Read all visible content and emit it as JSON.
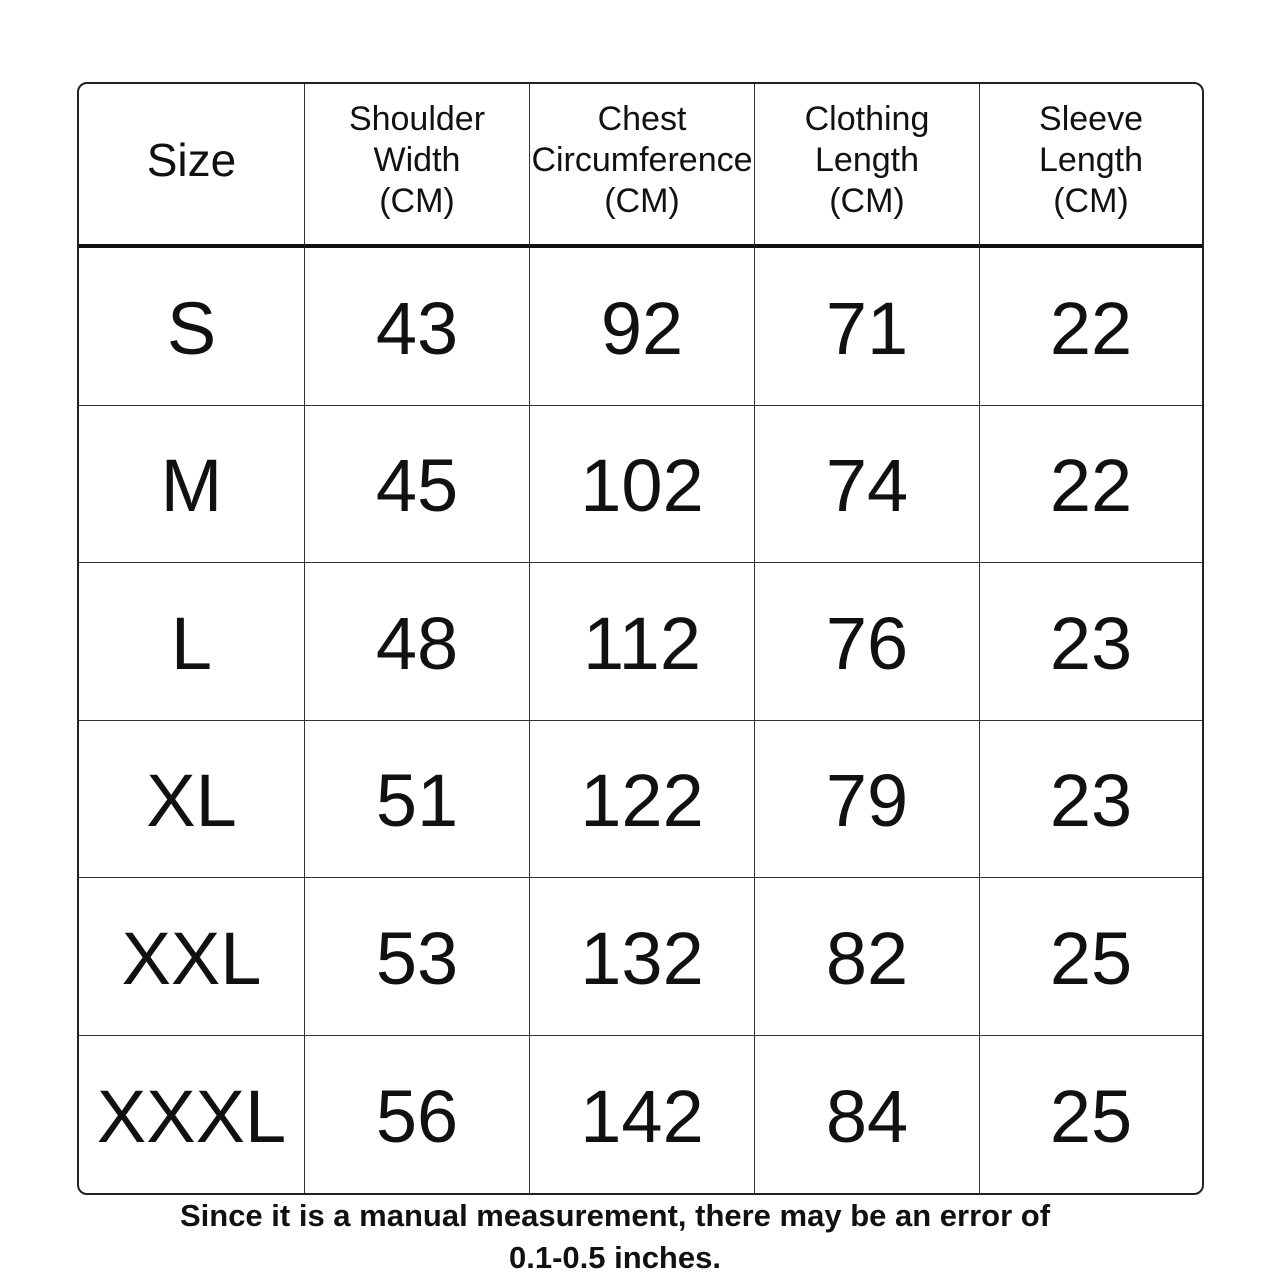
{
  "table": {
    "headers": [
      "Size",
      "Shoulder\nWidth\n(CM)",
      "Chest\nCircumference\n(CM)",
      "Clothing\nLength\n(CM)",
      "Sleeve\nLength\n(CM)"
    ],
    "rows": [
      [
        "S",
        "43",
        "92",
        "71",
        "22"
      ],
      [
        "M",
        "45",
        "102",
        "74",
        "22"
      ],
      [
        "L",
        "48",
        "112",
        "76",
        "23"
      ],
      [
        "XL",
        "51",
        "122",
        "79",
        "23"
      ],
      [
        "XXL",
        "53",
        "132",
        "82",
        "25"
      ],
      [
        "XXXL",
        "56",
        "142",
        "84",
        "25"
      ]
    ]
  },
  "footer": {
    "line1": "Since it is a manual measurement, there may be an error of",
    "line2": "0.1-0.5 inches."
  }
}
